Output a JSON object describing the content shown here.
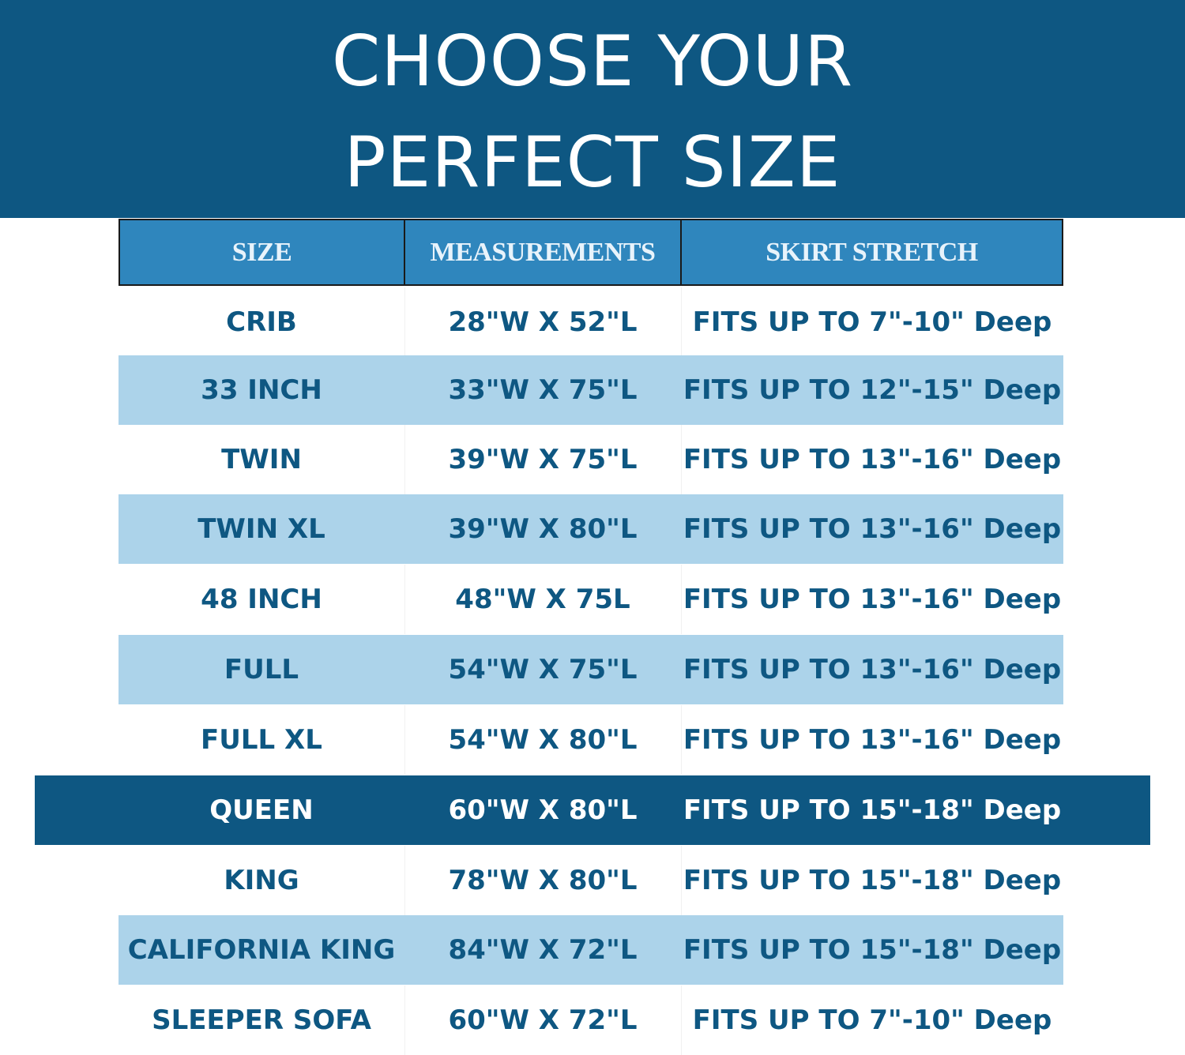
{
  "title": {
    "line1": "CHOOSE YOUR",
    "line2": "PERFECT SIZE"
  },
  "colors": {
    "banner": "#0e5782",
    "header": "#2f86bd",
    "row_alt": "#acd3ea",
    "text": "#0e5782",
    "highlight_row": "#0e5782"
  },
  "table": {
    "headers": [
      "SIZE",
      "MEASUREMENTS",
      "SKIRT STRETCH"
    ],
    "rows": [
      {
        "size": "CRIB",
        "measurements": "28\"W X 52\"L",
        "skirt": "FITS UP TO 7\"-10\" Deep",
        "style": "white"
      },
      {
        "size": "33 INCH",
        "measurements": "33\"W X 75\"L",
        "skirt": "FITS UP TO 12\"-15\" Deep",
        "style": "light"
      },
      {
        "size": "TWIN",
        "measurements": "39\"W X 75\"L",
        "skirt": "FITS UP TO 13\"-16\" Deep",
        "style": "white"
      },
      {
        "size": "TWIN XL",
        "measurements": "39\"W X 80\"L",
        "skirt": "FITS UP TO 13\"-16\" Deep",
        "style": "light"
      },
      {
        "size": "48 INCH",
        "measurements": "48\"W X 75L",
        "skirt": "FITS UP TO 13\"-16\" Deep",
        "style": "white"
      },
      {
        "size": "FULL",
        "measurements": "54\"W X 75\"L",
        "skirt": "FITS UP TO 13\"-16\" Deep",
        "style": "light"
      },
      {
        "size": "FULL XL",
        "measurements": "54\"W X 80\"L",
        "skirt": "FITS UP TO 13\"-16\" Deep",
        "style": "white"
      },
      {
        "size": "QUEEN",
        "measurements": "60\"W X 80\"L",
        "skirt": "FITS UP TO 15\"-18\" Deep",
        "style": "highlight"
      },
      {
        "size": "KING",
        "measurements": "78\"W X 80\"L",
        "skirt": "FITS UP TO 15\"-18\" Deep",
        "style": "white"
      },
      {
        "size": "CALIFORNIA KING",
        "measurements": "84\"W X 72\"L",
        "skirt": "FITS UP TO 15\"-18\" Deep",
        "style": "light"
      },
      {
        "size": "SLEEPER SOFA",
        "measurements": "60\"W X 72\"L",
        "skirt": "FITS UP TO 7\"-10\" Deep",
        "style": "white"
      }
    ]
  }
}
